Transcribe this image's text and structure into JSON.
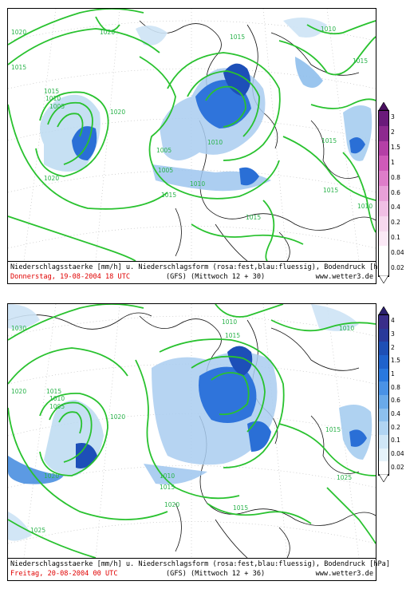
{
  "panels": [
    {
      "caption_line1": "Niederschlagsstaerke [mm/h] u. Niederschlagsform (rosa:fest,blau:fluessig), Bodendruck [hPa]",
      "date": "Donnerstag, 19-08-2004   18 UTC",
      "model": "(GFS)  (Mittwoch 12 + 30)",
      "site": "www.wetter3.de",
      "isobar_labels": [
        "1020",
        "1015",
        "1020",
        "1010",
        "1005",
        "1015",
        "1010",
        "1005",
        "1020",
        "1015",
        "1020",
        "1010",
        "1005",
        "1015",
        "1010",
        "1015",
        "1015",
        "1010",
        "1015",
        "1015"
      ],
      "legend_labels": [
        "3",
        "2",
        "1.5",
        "1",
        "0.8",
        "0.6",
        "0.4",
        "0.2",
        "0.1",
        "0.04",
        "0.02"
      ],
      "legend_colors": [
        "#6a1a7a",
        "#8d2a8f",
        "#b43fa6",
        "#cf5ab9",
        "#de7dc9",
        "#e8a0d8",
        "#f0bfe4",
        "#f6d8ee",
        "#fbe9f6",
        "#ffffff",
        "#ffffff"
      ]
    },
    {
      "caption_line1": "Niederschlagsstaerke [mm/h] u. Niederschlagsform (rosa:fest,blau:fluessig), Bodendruck [hPa]",
      "date": "Freitag, 20-08-2004   00 UTC",
      "model": "(GFS)  (Mittwoch 12 + 36)",
      "site": "www.wetter3.de",
      "isobar_labels": [
        "1030",
        "1020",
        "1015",
        "1010",
        "1005",
        "1020",
        "1025",
        "1020",
        "1010",
        "1015",
        "1010",
        "1015",
        "1010",
        "1015",
        "1015",
        "1020",
        "1025"
      ],
      "legend_labels": [
        "4",
        "3",
        "2",
        "1.5",
        "1",
        "0.8",
        "0.6",
        "0.4",
        "0.2",
        "0.1",
        "0.04",
        "0.02"
      ],
      "legend_colors": [
        "#3a2d8a",
        "#2a3a9a",
        "#1e4fb5",
        "#1f62cc",
        "#2a78de",
        "#4a92e6",
        "#6aaaea",
        "#8dc0ee",
        "#b0d4f2",
        "#cfe6f6",
        "#e6f3fa",
        "#ffffff"
      ]
    }
  ]
}
